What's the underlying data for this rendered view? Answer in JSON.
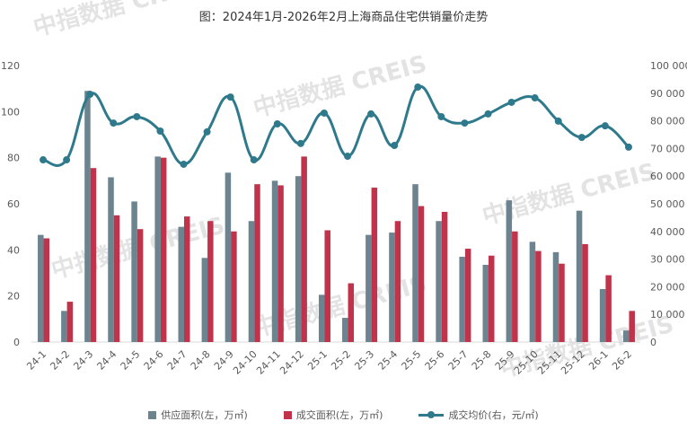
{
  "chart_data": {
    "type": "bar+line",
    "title": "图：2024年1月-2026年2月上海商品住宅供销量价走势",
    "watermark": "中指数据 CREIS",
    "categories": [
      "24-1",
      "24-2",
      "24-3",
      "24-4",
      "24-5",
      "24-6",
      "24-7",
      "24-8",
      "24-9",
      "24-10",
      "24-11",
      "24-12",
      "25-1",
      "25-2",
      "25-3",
      "25-4",
      "25-5",
      "25-6",
      "25-7",
      "25-8",
      "25-9",
      "25-10",
      "25-11",
      "25-12",
      "26-1",
      "26-2"
    ],
    "y_left": {
      "range": [
        0,
        120
      ],
      "ticks": [
        "0",
        "20",
        "40",
        "60",
        "80",
        "100",
        "120"
      ]
    },
    "y_right": {
      "range": [
        0,
        100000
      ],
      "ticks": [
        "0",
        "10 000",
        "20 000",
        "30 000",
        "40 000",
        "50 000",
        "60 000",
        "70 000",
        "80 000",
        "90 000",
        "100 000"
      ]
    },
    "grid": false,
    "legend_placement": "bottom",
    "series": [
      {
        "name": "供应面积(左，万㎡)",
        "type": "bar",
        "axis": "left",
        "color": "#6b848f",
        "values": [
          46.5,
          13.5,
          109,
          71.5,
          61,
          80.5,
          50,
          36.5,
          73.5,
          52.5,
          70,
          72,
          20.5,
          10.5,
          46.5,
          47.5,
          68.5,
          52.5,
          37,
          33.5,
          61.5,
          43.5,
          39,
          57,
          23,
          5
        ]
      },
      {
        "name": "成交面积(左，万㎡)",
        "type": "bar",
        "axis": "left",
        "color": "#c0334a",
        "values": [
          45,
          17.5,
          75.5,
          55,
          49,
          80,
          54.5,
          52.5,
          48,
          68.5,
          68,
          80.5,
          48.5,
          25.5,
          67,
          52.5,
          59,
          56.5,
          40.5,
          37.5,
          48,
          39.5,
          34,
          42.5,
          29,
          13.5
        ]
      },
      {
        "name": "成交均价(右，元/㎡)",
        "type": "line",
        "axis": "right",
        "color": "#2e7a8c",
        "values": [
          65900,
          65900,
          89600,
          79200,
          81500,
          76300,
          64300,
          76000,
          88600,
          65900,
          78900,
          71800,
          82800,
          67200,
          82500,
          71100,
          92200,
          81500,
          79200,
          82500,
          86700,
          88300,
          79900,
          74000,
          78200,
          70500
        ]
      }
    ]
  }
}
